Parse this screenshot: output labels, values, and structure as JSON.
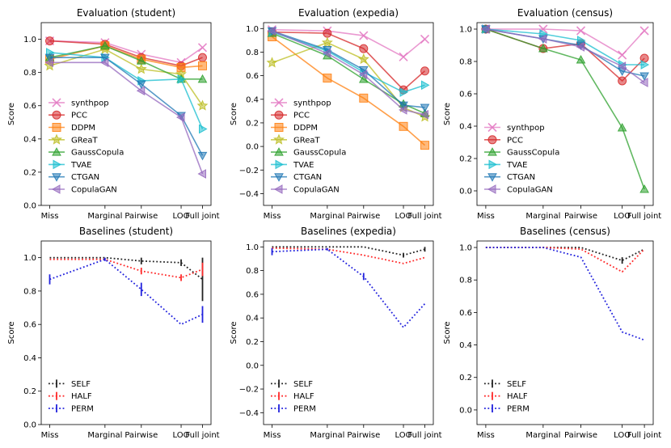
{
  "chart_data": [
    {
      "id": "eval-student",
      "type": "line",
      "title": "Evaluation (student)",
      "ylabel": "Score",
      "categories": [
        "Miss",
        "Marginal",
        "Pairwise",
        "LOO",
        "Full joint"
      ],
      "ylim": [
        0,
        1.1
      ],
      "yticks": [
        0.0,
        0.2,
        0.4,
        0.6,
        0.8,
        1.0
      ],
      "ytick_labels": [
        "0.0",
        "0.2",
        "0.4",
        "0.6",
        "0.8",
        "1.0"
      ],
      "legend_position": "lower-left",
      "series": [
        {
          "name": "synthpop",
          "color": "#e377c2",
          "marker": "x",
          "values": [
            0.99,
            0.98,
            0.91,
            0.86,
            0.95
          ]
        },
        {
          "name": "PCC",
          "color": "#d62728",
          "marker": "circle",
          "values": [
            0.99,
            0.97,
            0.89,
            0.84,
            0.89
          ]
        },
        {
          "name": "DDPM",
          "color": "#ff7f0e",
          "marker": "square",
          "values": [
            0.88,
            0.96,
            0.88,
            0.83,
            0.84
          ]
        },
        {
          "name": "GReaT",
          "color": "#bcbd22",
          "marker": "star",
          "values": [
            0.84,
            0.94,
            0.82,
            0.79,
            0.6
          ]
        },
        {
          "name": "GaussCopula",
          "color": "#2ca02c",
          "marker": "triangle-up",
          "values": [
            0.89,
            0.96,
            0.87,
            0.76,
            0.76
          ]
        },
        {
          "name": "TVAE",
          "color": "#17becf",
          "marker": "triangle-right",
          "values": [
            0.92,
            0.89,
            0.75,
            0.76,
            0.46
          ]
        },
        {
          "name": "CTGAN",
          "color": "#1f77b4",
          "marker": "triangle-down",
          "values": [
            0.89,
            0.89,
            0.73,
            0.54,
            0.3
          ]
        },
        {
          "name": "CopulaGAN",
          "color": "#9467bd",
          "marker": "triangle-left",
          "values": [
            0.86,
            0.86,
            0.69,
            0.53,
            0.19
          ]
        }
      ]
    },
    {
      "id": "eval-expedia",
      "type": "line",
      "title": "Evaluation (expedia)",
      "ylabel": "Score",
      "categories": [
        "Miss",
        "Marginal",
        "Pairwise",
        "LOO",
        "Full joint"
      ],
      "ylim": [
        -0.5,
        1.05
      ],
      "yticks": [
        -0.4,
        -0.2,
        0.0,
        0.2,
        0.4,
        0.6,
        0.8,
        1.0
      ],
      "ytick_labels": [
        "−0.4",
        "−0.2",
        "0.0",
        "0.2",
        "0.4",
        "0.6",
        "0.8",
        "1.0"
      ],
      "legend_position": "lower-left",
      "series": [
        {
          "name": "synthpop",
          "color": "#e377c2",
          "marker": "x",
          "values": [
            0.99,
            0.98,
            0.94,
            0.76,
            0.91
          ]
        },
        {
          "name": "PCC",
          "color": "#d62728",
          "marker": "circle",
          "values": [
            0.97,
            0.96,
            0.83,
            0.48,
            0.64
          ]
        },
        {
          "name": "DDPM",
          "color": "#ff7f0e",
          "marker": "square",
          "values": [
            0.93,
            0.58,
            0.41,
            0.17,
            0.01
          ]
        },
        {
          "name": "GReaT",
          "color": "#bcbd22",
          "marker": "star",
          "values": [
            0.71,
            0.88,
            0.74,
            0.33,
            0.25
          ]
        },
        {
          "name": "GaussCopula",
          "color": "#2ca02c",
          "marker": "triangle-up",
          "values": [
            0.96,
            0.77,
            0.57,
            0.36,
            0.28
          ]
        },
        {
          "name": "TVAE",
          "color": "#17becf",
          "marker": "triangle-right",
          "values": [
            0.97,
            0.81,
            0.63,
            0.46,
            0.52
          ]
        },
        {
          "name": "CTGAN",
          "color": "#1f77b4",
          "marker": "triangle-down",
          "values": [
            0.98,
            0.82,
            0.65,
            0.35,
            0.33
          ]
        },
        {
          "name": "CopulaGAN",
          "color": "#9467bd",
          "marker": "triangle-left",
          "values": [
            0.98,
            0.79,
            0.61,
            0.31,
            0.27
          ]
        }
      ]
    },
    {
      "id": "eval-census",
      "type": "line",
      "title": "Evaluation (census)",
      "ylabel": "Score",
      "categories": [
        "Miss",
        "Marginal",
        "Pairwise",
        "LOO",
        "Full joint"
      ],
      "ylim": [
        -0.09,
        1.04
      ],
      "yticks": [
        0.0,
        0.2,
        0.4,
        0.6,
        0.8,
        1.0
      ],
      "ytick_labels": [
        "0.0",
        "0.2",
        "0.4",
        "0.6",
        "0.8",
        "1.0"
      ],
      "legend_position": "lower-left",
      "series": [
        {
          "name": "synthpop",
          "color": "#e377c2",
          "marker": "x",
          "values": [
            1.0,
            1.0,
            0.99,
            0.84,
            0.99
          ]
        },
        {
          "name": "PCC",
          "color": "#d62728",
          "marker": "circle",
          "values": [
            1.0,
            0.88,
            0.91,
            0.68,
            0.82
          ]
        },
        {
          "name": "GaussCopula",
          "color": "#2ca02c",
          "marker": "triangle-up",
          "values": [
            1.0,
            0.88,
            0.81,
            0.39,
            0.01
          ]
        },
        {
          "name": "TVAE",
          "color": "#17becf",
          "marker": "triangle-right",
          "values": [
            1.0,
            0.97,
            0.93,
            0.78,
            0.78
          ]
        },
        {
          "name": "CTGAN",
          "color": "#1f77b4",
          "marker": "triangle-down",
          "values": [
            1.0,
            0.94,
            0.9,
            0.74,
            0.71
          ]
        },
        {
          "name": "CopulaGAN",
          "color": "#9467bd",
          "marker": "triangle-left",
          "values": [
            1.0,
            0.94,
            0.89,
            0.77,
            0.67
          ]
        }
      ]
    },
    {
      "id": "base-student",
      "type": "line",
      "title": "Baselines (student)",
      "ylabel": "Score",
      "categories": [
        "Miss",
        "Marginal",
        "Pairwise",
        "LOO",
        "Full joint"
      ],
      "ylim": [
        0,
        1.1
      ],
      "yticks": [
        0.0,
        0.2,
        0.4,
        0.6,
        0.8,
        1.0
      ],
      "ytick_labels": [
        "0.0",
        "0.2",
        "0.4",
        "0.6",
        "0.8",
        "1.0"
      ],
      "legend_position": "lower-left",
      "series": [
        {
          "name": "SELF",
          "color": "#222222",
          "marker": "none",
          "values": [
            1.0,
            1.0,
            0.98,
            0.97,
            0.87
          ],
          "errors": [
            0.0,
            0.0,
            0.02,
            0.02,
            0.13
          ]
        },
        {
          "name": "HALF",
          "color": "#ff2a2a",
          "marker": "none",
          "values": [
            0.99,
            0.99,
            0.92,
            0.88,
            0.93
          ],
          "errors": [
            0.0,
            0.0,
            0.02,
            0.02,
            0.04
          ]
        },
        {
          "name": "PERM",
          "color": "#2222dd",
          "marker": "none",
          "values": [
            0.87,
            0.99,
            0.81,
            0.6,
            0.66
          ],
          "errors": [
            0.03,
            0.01,
            0.04,
            0.0,
            0.05
          ]
        }
      ]
    },
    {
      "id": "base-expedia",
      "type": "line",
      "title": "Baselines (expedia)",
      "ylabel": "Score",
      "categories": [
        "Miss",
        "Marginal",
        "Pairwise",
        "LOO",
        "Full joint"
      ],
      "ylim": [
        -0.5,
        1.05
      ],
      "yticks": [
        -0.4,
        -0.2,
        0.0,
        0.2,
        0.4,
        0.6,
        0.8,
        1.0
      ],
      "ytick_labels": [
        "−0.4",
        "−0.2",
        "0.0",
        "0.2",
        "0.4",
        "0.6",
        "0.8",
        "1.0"
      ],
      "legend_position": "lower-left",
      "series": [
        {
          "name": "SELF",
          "color": "#222222",
          "marker": "none",
          "values": [
            1.0,
            1.0,
            1.0,
            0.93,
            0.98
          ],
          "errors": [
            0.0,
            0.0,
            0.0,
            0.02,
            0.02
          ]
        },
        {
          "name": "HALF",
          "color": "#ff2a2a",
          "marker": "none",
          "values": [
            0.99,
            0.98,
            0.93,
            0.86,
            0.91
          ],
          "errors": [
            0.0,
            0.0,
            0.0,
            0.0,
            0.0
          ]
        },
        {
          "name": "PERM",
          "color": "#2222dd",
          "marker": "none",
          "values": [
            0.96,
            0.98,
            0.75,
            0.32,
            0.52
          ],
          "errors": [
            0.03,
            0.01,
            0.03,
            0.0,
            0.0
          ]
        }
      ]
    },
    {
      "id": "base-census",
      "type": "line",
      "title": "Baselines (census)",
      "ylabel": "Score",
      "categories": [
        "Miss",
        "Marginal",
        "Pairwise",
        "LOO",
        "Full joint"
      ],
      "ylim": [
        -0.09,
        1.04
      ],
      "yticks": [
        0.0,
        0.2,
        0.4,
        0.6,
        0.8,
        1.0
      ],
      "ytick_labels": [
        "0.0",
        "0.2",
        "0.4",
        "0.6",
        "0.8",
        "1.0"
      ],
      "legend_position": "lower-left",
      "series": [
        {
          "name": "SELF",
          "color": "#222222",
          "marker": "none",
          "values": [
            1.0,
            1.0,
            1.0,
            0.92,
            0.99
          ],
          "errors": [
            0.0,
            0.0,
            0.0,
            0.02,
            0.0
          ]
        },
        {
          "name": "HALF",
          "color": "#ff2a2a",
          "marker": "none",
          "values": [
            1.0,
            1.0,
            0.99,
            0.85,
            0.99
          ],
          "errors": [
            0.0,
            0.0,
            0.0,
            0.0,
            0.0
          ]
        },
        {
          "name": "PERM",
          "color": "#2222dd",
          "marker": "none",
          "values": [
            1.0,
            1.0,
            0.94,
            0.48,
            0.43
          ],
          "errors": [
            0.0,
            0.0,
            0.0,
            0.0,
            0.0
          ]
        }
      ]
    }
  ]
}
